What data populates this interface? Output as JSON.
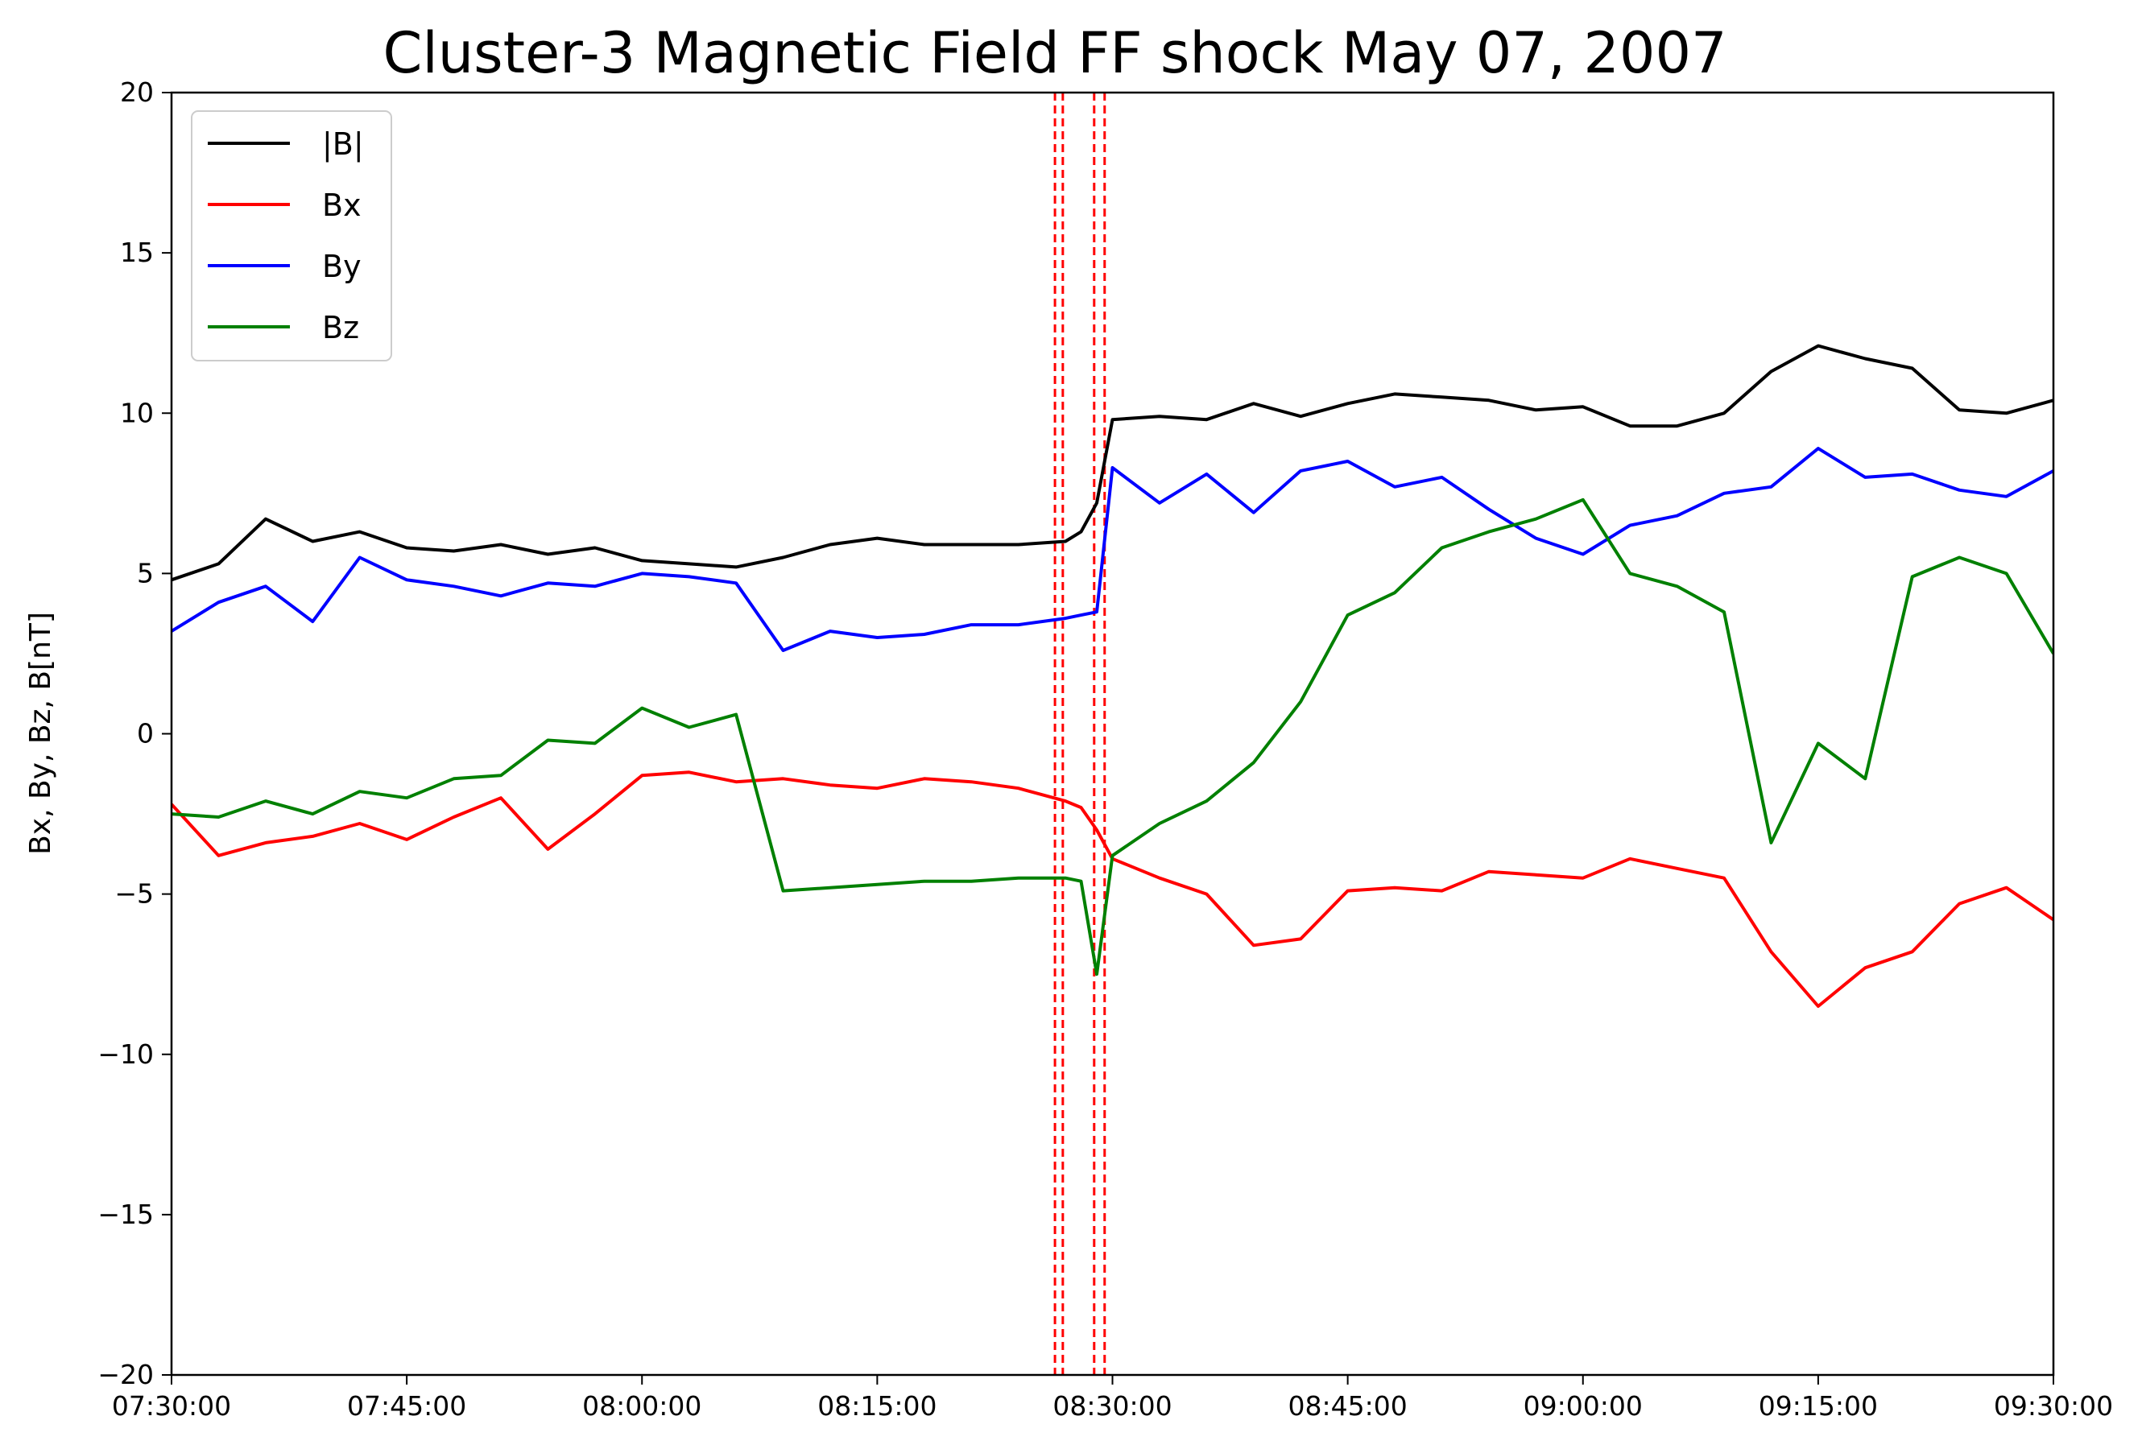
{
  "chart_data": {
    "type": "line",
    "title": "Cluster-3 Magnetic Field FF shock May 07, 2007",
    "xlabel": "",
    "ylabel": "Bx, By, Bz, B[nT]",
    "x_unit": "time (HH:MM:SS)",
    "xlim": [
      "07:30:00",
      "09:30:00"
    ],
    "ylim": [
      -20,
      20
    ],
    "x_ticks": [
      "07:30:00",
      "07:45:00",
      "08:00:00",
      "08:15:00",
      "08:30:00",
      "08:45:00",
      "09:00:00",
      "09:15:00",
      "09:30:00"
    ],
    "y_ticks": [
      -20,
      -15,
      -10,
      -5,
      0,
      5,
      10,
      15,
      20
    ],
    "y_tick_labels": [
      "−20",
      "−15",
      "−10",
      "−5",
      "0",
      "5",
      "10",
      "15",
      "20"
    ],
    "grid": false,
    "legend_position": "top-left",
    "vertical_markers": {
      "style": "red dashed",
      "color": "#ff0000",
      "times": [
        "08:26:20",
        "08:26:50",
        "08:28:50",
        "08:29:30"
      ]
    },
    "x": [
      "07:30",
      "07:33",
      "07:36",
      "07:39",
      "07:42",
      "07:45",
      "07:48",
      "07:51",
      "07:54",
      "07:57",
      "08:00",
      "08:03",
      "08:06",
      "08:09",
      "08:12",
      "08:15",
      "08:18",
      "08:21",
      "08:24",
      "08:27",
      "08:28",
      "08:29",
      "08:30",
      "08:33",
      "08:36",
      "08:39",
      "08:42",
      "08:45",
      "08:48",
      "08:51",
      "08:54",
      "08:57",
      "09:00",
      "09:03",
      "09:06",
      "09:09",
      "09:12",
      "09:15",
      "09:18",
      "09:21",
      "09:24",
      "09:27",
      "09:30"
    ],
    "series": [
      {
        "name": "|B|",
        "color": "#000000",
        "values": [
          4.8,
          5.3,
          6.7,
          6.0,
          6.3,
          5.8,
          5.7,
          5.9,
          5.6,
          5.8,
          5.4,
          5.3,
          5.2,
          5.5,
          5.9,
          6.1,
          5.9,
          5.9,
          5.9,
          6.0,
          6.3,
          7.2,
          9.8,
          9.9,
          9.8,
          10.3,
          9.9,
          10.3,
          10.6,
          10.5,
          10.4,
          10.1,
          10.2,
          9.6,
          9.6,
          10.0,
          11.3,
          12.1,
          11.7,
          11.4,
          10.1,
          10.0,
          10.4
        ]
      },
      {
        "name": "Bx",
        "color": "#ff0000",
        "values": [
          -2.2,
          -3.8,
          -3.4,
          -3.2,
          -2.8,
          -3.3,
          -2.6,
          -2.0,
          -3.6,
          -2.5,
          -1.3,
          -1.2,
          -1.5,
          -1.4,
          -1.6,
          -1.7,
          -1.4,
          -1.5,
          -1.7,
          -2.1,
          -2.3,
          -3.0,
          -3.9,
          -4.5,
          -5.0,
          -6.6,
          -6.4,
          -4.9,
          -4.8,
          -4.9,
          -4.3,
          -4.4,
          -4.5,
          -3.9,
          -4.2,
          -4.5,
          -6.8,
          -8.5,
          -7.3,
          -6.8,
          -5.3,
          -4.8,
          -5.8
        ]
      },
      {
        "name": "By",
        "color": "#0000ff",
        "values": [
          3.2,
          4.1,
          4.6,
          3.5,
          5.5,
          4.8,
          4.6,
          4.3,
          4.7,
          4.6,
          5.0,
          4.9,
          4.7,
          2.6,
          3.2,
          3.0,
          3.1,
          3.4,
          3.4,
          3.6,
          3.7,
          3.8,
          8.3,
          7.2,
          8.1,
          6.9,
          8.2,
          8.5,
          7.7,
          8.0,
          7.0,
          6.1,
          5.6,
          6.5,
          6.8,
          7.5,
          7.7,
          8.9,
          8.0,
          8.1,
          7.6,
          7.4,
          8.2
        ]
      },
      {
        "name": "Bz",
        "color": "#008000",
        "values": [
          -2.5,
          -2.6,
          -2.1,
          -2.5,
          -1.8,
          -2.0,
          -1.4,
          -1.3,
          -0.2,
          -0.3,
          0.8,
          0.2,
          0.6,
          -4.9,
          -4.8,
          -4.7,
          -4.6,
          -4.6,
          -4.5,
          -4.5,
          -4.6,
          -7.5,
          -3.8,
          -2.8,
          -2.1,
          -0.9,
          1.0,
          3.7,
          4.4,
          5.8,
          6.3,
          6.7,
          7.3,
          5.0,
          4.6,
          3.8,
          -3.4,
          -0.3,
          -1.4,
          4.9,
          5.5,
          5.0,
          2.5
        ]
      }
    ]
  }
}
